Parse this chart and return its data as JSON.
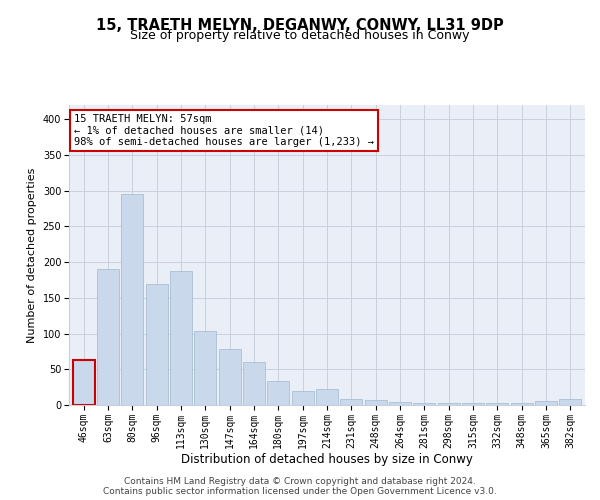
{
  "title1": "15, TRAETH MELYN, DEGANWY, CONWY, LL31 9DP",
  "title2": "Size of property relative to detached houses in Conwy",
  "xlabel": "Distribution of detached houses by size in Conwy",
  "ylabel": "Number of detached properties",
  "categories": [
    "46sqm",
    "63sqm",
    "80sqm",
    "96sqm",
    "113sqm",
    "130sqm",
    "147sqm",
    "164sqm",
    "180sqm",
    "197sqm",
    "214sqm",
    "231sqm",
    "248sqm",
    "264sqm",
    "281sqm",
    "298sqm",
    "315sqm",
    "332sqm",
    "348sqm",
    "365sqm",
    "382sqm"
  ],
  "values": [
    63,
    190,
    295,
    170,
    188,
    103,
    79,
    60,
    33,
    20,
    23,
    9,
    7,
    4,
    3,
    3,
    3,
    3,
    3,
    5,
    8
  ],
  "bar_color": "#c9d9eb",
  "bar_edge_color": "#a0b8d0",
  "highlight_bar_index": 0,
  "highlight_edge_color": "#cc0000",
  "annotation_text": "15 TRAETH MELYN: 57sqm\n← 1% of detached houses are smaller (14)\n98% of semi-detached houses are larger (1,233) →",
  "annotation_box_color": "white",
  "annotation_box_edge_color": "#cc0000",
  "ylim": [
    0,
    420
  ],
  "yticks": [
    0,
    50,
    100,
    150,
    200,
    250,
    300,
    350,
    400
  ],
  "grid_color": "#c8d0de",
  "background_color": "#eaeff7",
  "footer1": "Contains HM Land Registry data © Crown copyright and database right 2024.",
  "footer2": "Contains public sector information licensed under the Open Government Licence v3.0.",
  "title1_fontsize": 10.5,
  "title2_fontsize": 9,
  "tick_fontsize": 7,
  "xlabel_fontsize": 8.5,
  "ylabel_fontsize": 8,
  "footer_fontsize": 6.5,
  "annotation_fontsize": 7.5
}
